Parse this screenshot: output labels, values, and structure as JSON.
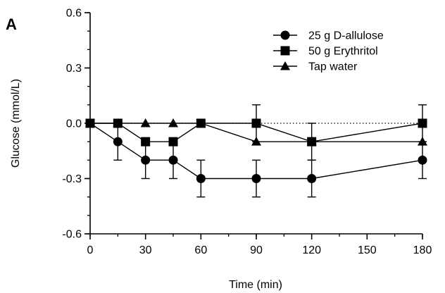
{
  "chart_data": {
    "type": "line",
    "panel_label": "A",
    "xlabel": "Time (min)",
    "ylabel": "Glucose (mmol/L)",
    "xlim": [
      0,
      180
    ],
    "ylim": [
      -0.6,
      0.6
    ],
    "xticks": [
      0,
      30,
      60,
      90,
      120,
      150,
      180
    ],
    "xtick_labels": [
      "0",
      "30",
      "60",
      "90",
      "120",
      "150",
      "180"
    ],
    "yticks": [
      -0.6,
      -0.3,
      0.0,
      0.3,
      0.6
    ],
    "ytick_labels": [
      "-0.6",
      "-0.3",
      "0.0",
      "0.3",
      "0.6"
    ],
    "minor_tick_step": 0.1,
    "x_minor_tick_step": 15,
    "zero_reference_line": "dotted",
    "legend_position": "top-right",
    "series": [
      {
        "name": "25 g D-allulose",
        "marker": "circle",
        "x": [
          0,
          15,
          30,
          45,
          60,
          90,
          120,
          180
        ],
        "y": [
          0.0,
          -0.1,
          -0.2,
          -0.2,
          -0.3,
          -0.3,
          -0.3,
          -0.2
        ],
        "error": [
          0,
          0.1,
          0.1,
          0.1,
          0.1,
          0.1,
          0.1,
          0.1
        ]
      },
      {
        "name": "50 g Erythritol",
        "marker": "square",
        "x": [
          0,
          15,
          30,
          45,
          60,
          90,
          120,
          180
        ],
        "y": [
          0.0,
          0.0,
          -0.1,
          -0.1,
          0.0,
          0.0,
          -0.1,
          0.0
        ],
        "error": [
          0,
          0,
          0,
          0,
          0,
          0.1,
          0.1,
          0.1
        ]
      },
      {
        "name": "Tap water",
        "marker": "triangle",
        "x": [
          0,
          15,
          30,
          45,
          60,
          90,
          120,
          180
        ],
        "y": [
          0.0,
          0.0,
          0.0,
          0.0,
          0.0,
          -0.1,
          -0.1,
          -0.1
        ],
        "error": [
          0,
          0,
          0,
          0,
          0,
          0,
          0,
          0
        ]
      }
    ]
  }
}
